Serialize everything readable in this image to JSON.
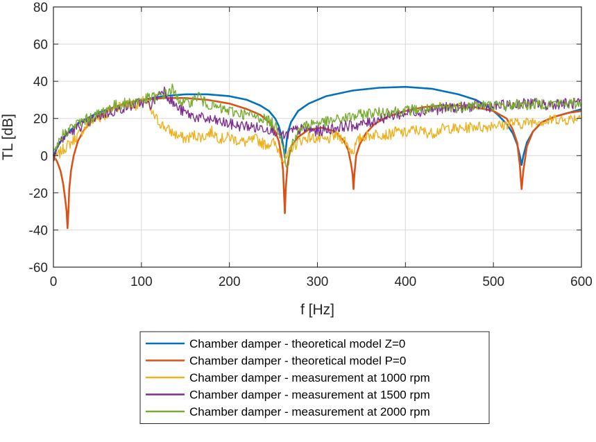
{
  "chart_data": {
    "type": "line",
    "title": "",
    "xlabel": "f [Hz]",
    "ylabel": "TL [dB]",
    "xlim": [
      0,
      600
    ],
    "ylim": [
      -60,
      80
    ],
    "xticks": [
      0,
      100,
      200,
      300,
      400,
      500,
      600
    ],
    "yticks": [
      -60,
      -40,
      -20,
      0,
      20,
      40,
      60,
      80
    ],
    "xtick_labels": [
      "0",
      "100",
      "200",
      "300",
      "400",
      "500",
      "600"
    ],
    "ytick_labels": [
      "-60",
      "-40",
      "-20",
      "0",
      "20",
      "40",
      "60",
      "80"
    ],
    "grid": true,
    "legend_position": "below plot",
    "series": [
      {
        "name": "Chamber damper - theoretical model Z=0",
        "color": "#0072BD",
        "x": [
          0,
          5,
          10,
          20,
          30,
          50,
          75,
          100,
          125,
          150,
          175,
          200,
          220,
          235,
          245,
          252,
          256,
          259,
          262,
          263,
          264,
          266,
          270,
          278,
          290,
          310,
          340,
          370,
          400,
          430,
          460,
          480,
          495,
          505,
          515,
          522,
          527,
          530,
          532,
          534,
          538,
          545,
          555,
          570,
          585,
          600
        ],
        "y": [
          0,
          5,
          9,
          14,
          18,
          23,
          27,
          30,
          32,
          33,
          33,
          32,
          30,
          27,
          24,
          20,
          16,
          11,
          3,
          -1,
          3,
          12,
          18,
          24,
          28,
          32,
          35,
          36.5,
          37,
          36,
          33,
          30,
          26,
          22,
          17,
          12,
          6,
          0,
          -5,
          0,
          7,
          13,
          18,
          21,
          23,
          25
        ]
      },
      {
        "name": "Chamber damper - theoretical model P=0",
        "color": "#D95319",
        "x": [
          0,
          4,
          8,
          11,
          13,
          15,
          16,
          17,
          18,
          20,
          23,
          28,
          35,
          45,
          60,
          80,
          100,
          125,
          150,
          175,
          200,
          220,
          235,
          245,
          252,
          256,
          259,
          261,
          262,
          263,
          264,
          266,
          270,
          278,
          290,
          305,
          320,
          330,
          335,
          338,
          340,
          341,
          342,
          344,
          348,
          355,
          365,
          380,
          400,
          420,
          440,
          460,
          480,
          500,
          515,
          522,
          527,
          530,
          531,
          532,
          534,
          538,
          545,
          555,
          570,
          585,
          600
        ],
        "y": [
          0,
          -3,
          -8,
          -15,
          -22,
          -30,
          -39,
          -30,
          -18,
          -8,
          0,
          8,
          14,
          19,
          24,
          28,
          30,
          31,
          31,
          30,
          28,
          25,
          22,
          18,
          13,
          8,
          0,
          -8,
          -20,
          -31,
          -18,
          -5,
          5,
          10,
          14,
          15,
          13,
          8,
          3,
          -4,
          -10,
          -18,
          -10,
          0,
          6,
          12,
          17,
          21,
          24,
          26,
          27,
          27,
          26,
          24,
          20,
          14,
          7,
          -5,
          -12,
          -18,
          -8,
          5,
          13,
          18,
          21,
          23,
          24
        ]
      },
      {
        "name": "Chamber damper - measurement at 1000 rpm",
        "color": "#EDB120",
        "x": [
          0,
          5,
          10,
          20,
          30,
          40,
          50,
          60,
          70,
          80,
          90,
          100,
          105,
          110,
          120,
          130,
          140,
          150,
          160,
          170,
          180,
          190,
          200,
          210,
          220,
          230,
          240,
          250,
          256,
          262,
          266,
          270,
          280,
          290,
          300,
          310,
          320,
          330,
          335,
          340,
          345,
          350,
          360,
          370,
          380,
          390,
          400,
          410,
          420,
          430,
          440,
          450,
          460,
          470,
          480,
          490,
          500,
          510,
          520,
          530,
          540,
          550,
          560,
          570,
          580,
          590,
          600
        ],
        "y": [
          -2,
          0,
          3,
          7,
          12,
          17,
          20,
          22,
          26,
          28,
          27,
          28,
          31,
          24,
          18,
          14,
          11,
          9,
          11,
          10,
          13,
          9,
          10,
          8,
          7,
          9,
          6,
          7,
          3,
          -3,
          -1,
          4,
          8,
          10,
          9,
          8,
          11,
          9,
          5,
          2,
          7,
          10,
          11,
          12,
          11,
          13,
          12,
          14,
          13,
          12,
          14,
          15,
          14,
          15,
          16,
          15,
          17,
          16,
          18,
          17,
          18,
          19,
          18,
          20,
          19,
          20,
          21
        ]
      },
      {
        "name": "Chamber damper - measurement at 1500 rpm",
        "color": "#7E2F8E",
        "x": [
          0,
          5,
          10,
          20,
          30,
          40,
          50,
          60,
          70,
          80,
          90,
          100,
          110,
          120,
          125,
          130,
          140,
          150,
          160,
          170,
          180,
          190,
          200,
          210,
          220,
          230,
          240,
          250,
          256,
          262,
          266,
          270,
          280,
          290,
          300,
          310,
          320,
          330,
          340,
          350,
          360,
          370,
          380,
          390,
          400,
          410,
          420,
          430,
          440,
          450,
          460,
          470,
          480,
          490,
          500,
          510,
          520,
          530,
          540,
          550,
          560,
          570,
          580,
          590,
          600
        ],
        "y": [
          0,
          5,
          9,
          13,
          16,
          18,
          21,
          23,
          24,
          26,
          27,
          29,
          27,
          33,
          36,
          32,
          26,
          23,
          21,
          20,
          19,
          18,
          17,
          16,
          16,
          15,
          15,
          14,
          12,
          10,
          11,
          13,
          14,
          14,
          13,
          14,
          15,
          16,
          16,
          17,
          18,
          20,
          21,
          22,
          23,
          24,
          24,
          25,
          25,
          26,
          26,
          26,
          27,
          27,
          26,
          27,
          27,
          28,
          28,
          28,
          27,
          28,
          28,
          28,
          28
        ]
      },
      {
        "name": "Chamber damper - measurement at 2000 rpm",
        "color": "#77AC30",
        "x": [
          0,
          5,
          10,
          20,
          30,
          40,
          50,
          60,
          70,
          80,
          90,
          100,
          110,
          120,
          130,
          135,
          140,
          150,
          160,
          165,
          170,
          180,
          190,
          200,
          210,
          220,
          230,
          240,
          250,
          256,
          262,
          265,
          268,
          272,
          280,
          290,
          300,
          310,
          320,
          330,
          340,
          350,
          360,
          370,
          380,
          390,
          400,
          410,
          420,
          430,
          440,
          450,
          460,
          470,
          480,
          490,
          500,
          510,
          520,
          530,
          540,
          550,
          560,
          570,
          580,
          590,
          600
        ],
        "y": [
          0,
          6,
          11,
          15,
          18,
          20,
          22,
          25,
          27,
          28,
          29,
          30,
          31,
          32,
          34,
          36,
          31,
          28,
          30,
          33,
          29,
          27,
          25,
          24,
          23,
          22,
          21,
          20,
          17,
          14,
          5,
          -8,
          -2,
          8,
          14,
          17,
          18,
          18,
          19,
          20,
          21,
          22,
          23,
          23,
          24,
          24,
          24,
          25,
          25,
          25,
          26,
          26,
          26,
          27,
          27,
          27,
          27,
          27,
          27,
          28,
          27,
          28,
          28,
          28,
          28,
          28,
          28
        ]
      }
    ]
  }
}
